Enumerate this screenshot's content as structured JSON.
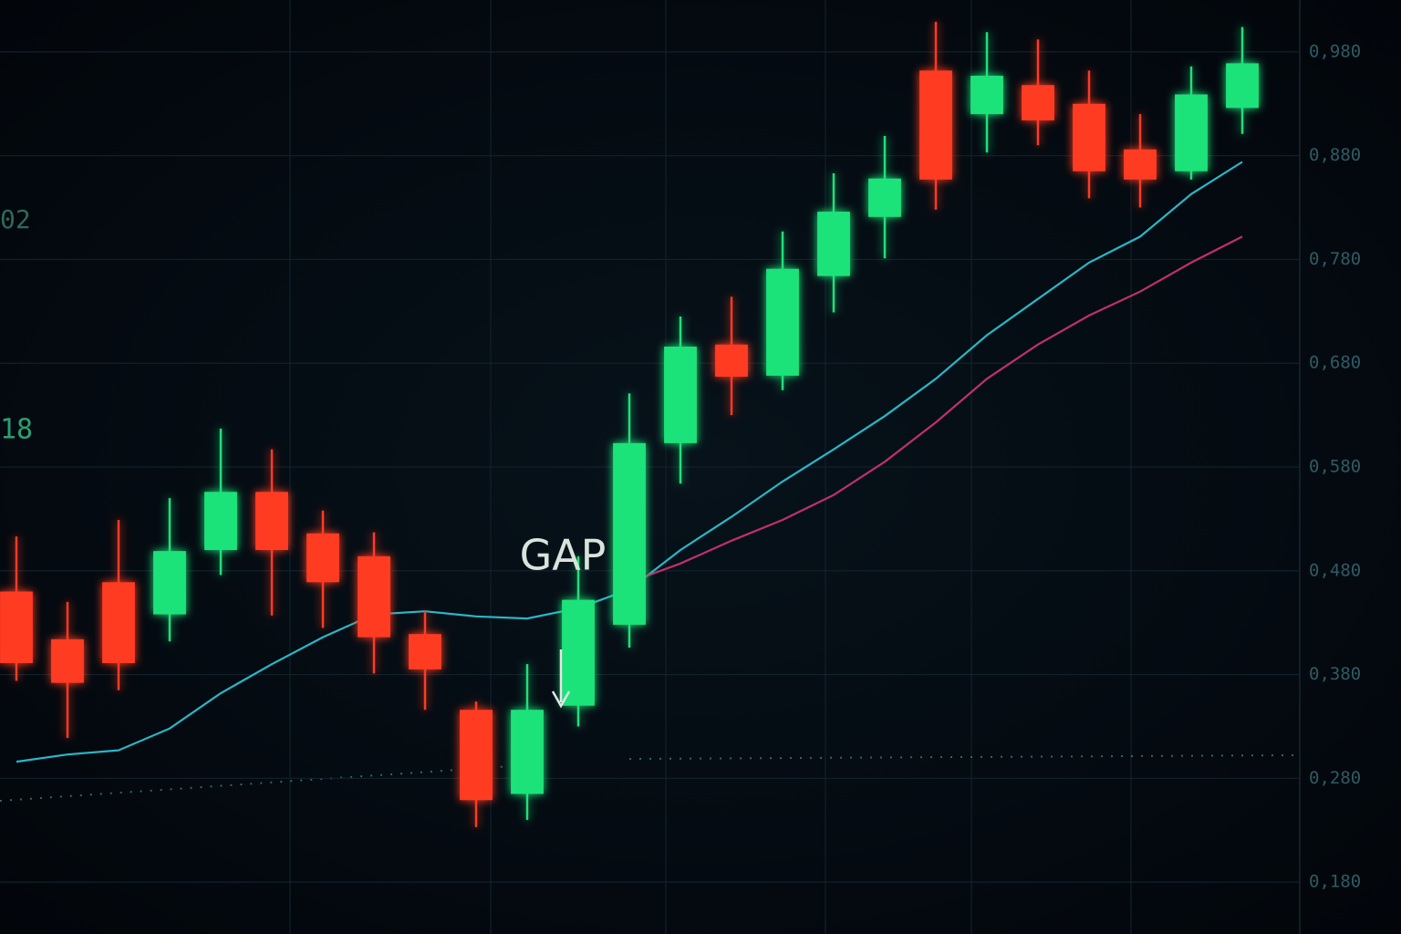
{
  "chart_data": {
    "type": "candlestick",
    "up_color": "#1fe27a",
    "down_color": "#ff3b22",
    "open": [
      0.46,
      0.414,
      0.469,
      0.438,
      0.5,
      0.556,
      0.516,
      0.494,
      0.419,
      0.346,
      0.265,
      0.35,
      0.428,
      0.603,
      0.698,
      0.668,
      0.764,
      0.821,
      0.962,
      0.92,
      0.948,
      0.93,
      0.886,
      0.865,
      0.926
    ],
    "high": [
      0.513,
      0.45,
      0.529,
      0.55,
      0.617,
      0.597,
      0.538,
      0.517,
      0.441,
      0.354,
      0.39,
      0.494,
      0.651,
      0.725,
      0.744,
      0.807,
      0.863,
      0.899,
      1.009,
      0.999,
      0.992,
      0.962,
      0.92,
      0.966,
      1.004
    ],
    "low": [
      0.374,
      0.319,
      0.365,
      0.412,
      0.476,
      0.437,
      0.425,
      0.381,
      0.346,
      0.233,
      0.24,
      0.33,
      0.406,
      0.564,
      0.63,
      0.654,
      0.729,
      0.781,
      0.828,
      0.883,
      0.89,
      0.839,
      0.83,
      0.857,
      0.901
    ],
    "close": [
      0.391,
      0.372,
      0.391,
      0.499,
      0.556,
      0.5,
      0.469,
      0.416,
      0.385,
      0.259,
      0.346,
      0.452,
      0.603,
      0.696,
      0.667,
      0.771,
      0.826,
      0.858,
      0.857,
      0.957,
      0.914,
      0.865,
      0.857,
      0.939,
      0.969
    ],
    "lines": [
      {
        "color": "#27b8c8",
        "values": [
          0.296,
          0.303,
          0.307,
          0.328,
          0.362,
          0.39,
          0.416,
          0.438,
          0.441,
          0.436,
          0.434,
          0.444,
          0.462,
          0.5,
          0.532,
          0.566,
          0.597,
          0.629,
          0.665,
          0.707,
          0.742,
          0.777,
          0.802,
          0.843,
          0.874
        ]
      },
      {
        "color": "#c0306a",
        "values": [
          null,
          null,
          null,
          null,
          null,
          null,
          null,
          null,
          null,
          null,
          null,
          null,
          0.469,
          0.487,
          0.509,
          0.529,
          0.553,
          0.585,
          0.623,
          0.665,
          0.698,
          0.726,
          0.749,
          0.777,
          0.802
        ]
      }
    ],
    "ylim": [
      0.13,
      1.03
    ],
    "yticks": [
      {
        "value": 0.98,
        "label": "0,980"
      },
      {
        "value": 0.88,
        "label": "0,880"
      },
      {
        "value": 0.78,
        "label": "0,780"
      },
      {
        "value": 0.68,
        "label": "0,680"
      },
      {
        "value": 0.58,
        "label": "0,580"
      },
      {
        "value": 0.48,
        "label": "0,480"
      },
      {
        "value": 0.38,
        "label": "0,380"
      },
      {
        "value": 0.28,
        "label": "0,280"
      },
      {
        "value": 0.18,
        "label": "0,180"
      }
    ],
    "grid": true,
    "annotations": [
      "GAP",
      "02",
      "18"
    ]
  }
}
